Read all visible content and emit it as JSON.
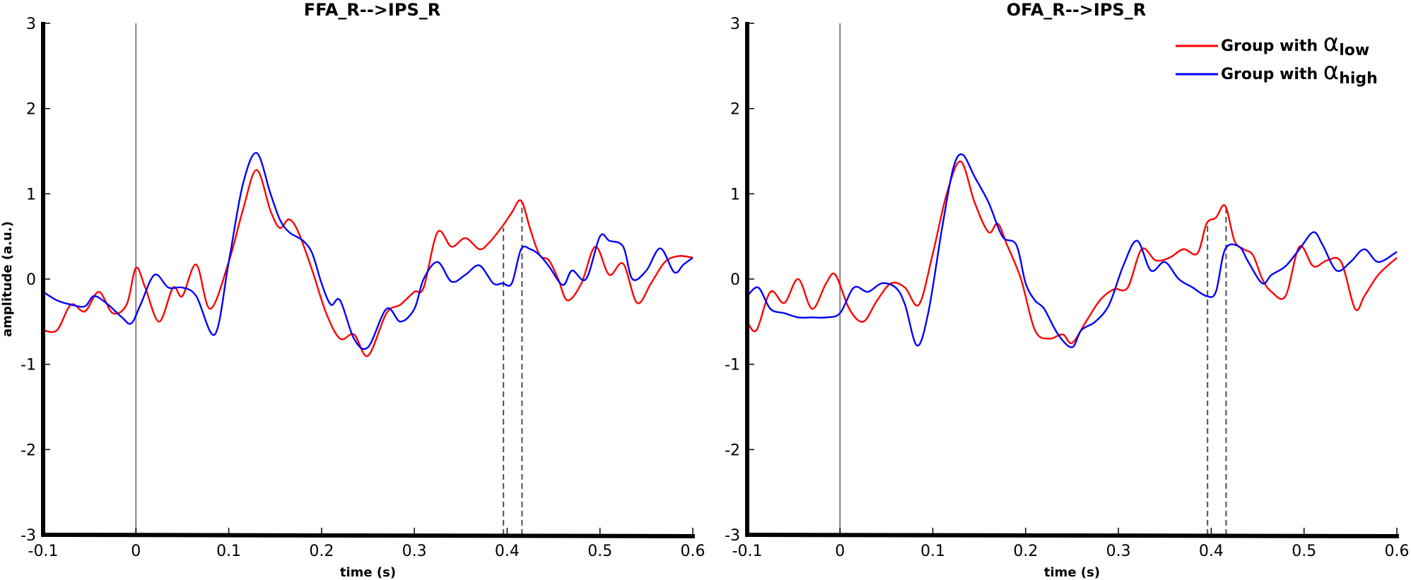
{
  "chart_data": [
    {
      "type": "line",
      "title": "FFA_R-->IPS_R",
      "xlabel": "time (s)",
      "ylabel": "amplitude (a.u.)",
      "xlim": [
        -0.1,
        0.6
      ],
      "ylim": [
        -3,
        3
      ],
      "xticks": [
        -0.1,
        0,
        0.1,
        0.2,
        0.3,
        0.4,
        0.5,
        0.6
      ],
      "xtick_labels": [
        "-0.1",
        "0",
        "0.1",
        "0.2",
        "0.3",
        "0.4",
        "0.5",
        "0.6"
      ],
      "yticks": [
        -3,
        -2,
        -1,
        0,
        1,
        2,
        3
      ],
      "ytick_labels": [
        "-3",
        "-2",
        "-1",
        "0",
        "1",
        "2",
        "3"
      ],
      "grid": false,
      "vlines": [
        {
          "x": 0,
          "style": "solid",
          "color": "#808080"
        },
        {
          "x": 0.396,
          "style": "dashed",
          "color": "#505050",
          "y_to": 0.6
        },
        {
          "x": 0.416,
          "style": "dashed",
          "color": "#505050",
          "y_to": 0.9
        }
      ],
      "series": [
        {
          "color": "#ff0000",
          "x": [
            -0.1,
            -0.085,
            -0.07,
            -0.055,
            -0.04,
            -0.025,
            -0.01,
            0,
            0.01,
            0.025,
            0.04,
            0.05,
            0.065,
            0.08,
            0.1,
            0.115,
            0.13,
            0.145,
            0.155,
            0.165,
            0.175,
            0.19,
            0.205,
            0.22,
            0.235,
            0.25,
            0.27,
            0.285,
            0.3,
            0.31,
            0.325,
            0.34,
            0.355,
            0.37,
            0.38,
            0.395,
            0.405,
            0.415,
            0.425,
            0.435,
            0.445,
            0.455,
            0.465,
            0.48,
            0.495,
            0.51,
            0.525,
            0.54,
            0.555,
            0.57,
            0.585,
            0.6
          ],
          "y": [
            -0.6,
            -0.6,
            -0.3,
            -0.38,
            -0.15,
            -0.4,
            -0.3,
            0.13,
            -0.1,
            -0.5,
            -0.1,
            -0.2,
            0.17,
            -0.35,
            0.2,
            0.8,
            1.28,
            0.8,
            0.6,
            0.7,
            0.55,
            0.1,
            -0.4,
            -0.7,
            -0.65,
            -0.9,
            -0.4,
            -0.3,
            -0.15,
            -0.1,
            0.55,
            0.38,
            0.48,
            0.35,
            0.42,
            0.62,
            0.78,
            0.92,
            0.58,
            0.28,
            0.22,
            0.0,
            -0.25,
            -0.05,
            0.38,
            0.05,
            0.18,
            -0.28,
            -0.05,
            0.2,
            0.27,
            0.25
          ]
        },
        {
          "color": "#0000ff",
          "x": [
            -0.1,
            -0.085,
            -0.07,
            -0.055,
            -0.045,
            -0.03,
            -0.015,
            -0.005,
            0.005,
            0.02,
            0.035,
            0.05,
            0.065,
            0.085,
            0.1,
            0.115,
            0.13,
            0.145,
            0.155,
            0.165,
            0.18,
            0.19,
            0.2,
            0.21,
            0.22,
            0.235,
            0.25,
            0.27,
            0.285,
            0.3,
            0.31,
            0.325,
            0.34,
            0.355,
            0.37,
            0.385,
            0.395,
            0.405,
            0.415,
            0.425,
            0.435,
            0.445,
            0.46,
            0.47,
            0.485,
            0.5,
            0.51,
            0.525,
            0.535,
            0.55,
            0.565,
            0.58,
            0.59,
            0.6
          ],
          "y": [
            -0.15,
            -0.25,
            -0.3,
            -0.32,
            -0.2,
            -0.3,
            -0.45,
            -0.52,
            -0.3,
            0.05,
            -0.1,
            -0.1,
            -0.2,
            -0.65,
            0.2,
            1.1,
            1.48,
            1.0,
            0.7,
            0.55,
            0.45,
            0.3,
            -0.05,
            -0.3,
            -0.25,
            -0.7,
            -0.8,
            -0.35,
            -0.5,
            -0.35,
            0.0,
            0.2,
            -0.03,
            0.05,
            0.16,
            -0.05,
            -0.05,
            -0.05,
            0.35,
            0.35,
            0.28,
            0.15,
            -0.07,
            0.1,
            0.0,
            0.5,
            0.45,
            0.38,
            0.0,
            0.1,
            0.36,
            0.08,
            0.17,
            0.25
          ]
        }
      ]
    },
    {
      "type": "line",
      "title": "OFA_R-->IPS_R",
      "xlabel": "time (s)",
      "ylabel": "",
      "xlim": [
        -0.1,
        0.6
      ],
      "ylim": [
        -3,
        3
      ],
      "xticks": [
        -0.1,
        0,
        0.1,
        0.2,
        0.3,
        0.4,
        0.5,
        0.6
      ],
      "xtick_labels": [
        "-0.1",
        "0",
        "0.1",
        "0.2",
        "0.3",
        "0.4",
        "0.5",
        "0.6"
      ],
      "yticks": [
        -3,
        -2,
        -1,
        0,
        1,
        2,
        3
      ],
      "ytick_labels": [
        "-3",
        "-2",
        "-1",
        "0",
        "1",
        "2",
        "3"
      ],
      "grid": false,
      "legend": {
        "placement": "top-right"
      },
      "vlines": [
        {
          "x": 0,
          "style": "solid",
          "color": "#808080"
        },
        {
          "x": 0.396,
          "style": "dashed",
          "color": "#505050",
          "y_to": 0.65
        },
        {
          "x": 0.416,
          "style": "dashed",
          "color": "#505050",
          "y_to": 0.85
        }
      ],
      "series": [
        {
          "name": "Group with α",
          "name_subscript": "low",
          "color": "#ff0000",
          "x": [
            -0.1,
            -0.09,
            -0.075,
            -0.06,
            -0.045,
            -0.03,
            -0.015,
            -0.005,
            0.01,
            0.025,
            0.04,
            0.055,
            0.07,
            0.085,
            0.1,
            0.115,
            0.13,
            0.145,
            0.16,
            0.17,
            0.18,
            0.195,
            0.21,
            0.225,
            0.24,
            0.25,
            0.265,
            0.28,
            0.295,
            0.31,
            0.325,
            0.34,
            0.355,
            0.37,
            0.385,
            0.395,
            0.405,
            0.415,
            0.425,
            0.435,
            0.445,
            0.455,
            0.465,
            0.48,
            0.495,
            0.51,
            0.525,
            0.54,
            0.555,
            0.565,
            0.58,
            0.6
          ],
          "y": [
            -0.5,
            -0.6,
            -0.15,
            -0.28,
            0.0,
            -0.35,
            -0.05,
            0.05,
            -0.35,
            -0.5,
            -0.25,
            -0.05,
            -0.1,
            -0.3,
            0.3,
            1.0,
            1.38,
            0.9,
            0.55,
            0.65,
            0.4,
            0.0,
            -0.6,
            -0.7,
            -0.65,
            -0.75,
            -0.5,
            -0.25,
            -0.12,
            -0.1,
            0.35,
            0.22,
            0.25,
            0.35,
            0.3,
            0.65,
            0.72,
            0.86,
            0.45,
            0.35,
            0.28,
            0.0,
            -0.15,
            -0.2,
            0.38,
            0.15,
            0.22,
            0.2,
            -0.35,
            -0.2,
            0.05,
            0.25
          ]
        },
        {
          "name": "Group with α",
          "name_subscript": "high",
          "color": "#0000ff",
          "x": [
            -0.1,
            -0.088,
            -0.075,
            -0.06,
            -0.045,
            -0.03,
            -0.015,
            0,
            0.015,
            0.03,
            0.045,
            0.06,
            0.07,
            0.083,
            0.095,
            0.11,
            0.122,
            0.132,
            0.145,
            0.16,
            0.175,
            0.19,
            0.2,
            0.21,
            0.22,
            0.235,
            0.25,
            0.26,
            0.275,
            0.29,
            0.305,
            0.32,
            0.335,
            0.35,
            0.365,
            0.38,
            0.395,
            0.405,
            0.415,
            0.43,
            0.44,
            0.455,
            0.465,
            0.48,
            0.495,
            0.51,
            0.52,
            0.535,
            0.55,
            0.565,
            0.58,
            0.6
          ],
          "y": [
            -0.2,
            -0.1,
            -0.35,
            -0.4,
            -0.45,
            -0.45,
            -0.45,
            -0.4,
            -0.1,
            -0.15,
            -0.05,
            -0.1,
            -0.3,
            -0.78,
            -0.4,
            0.6,
            1.3,
            1.46,
            1.2,
            0.9,
            0.5,
            0.4,
            -0.05,
            -0.25,
            -0.35,
            -0.65,
            -0.8,
            -0.6,
            -0.5,
            -0.3,
            0.15,
            0.45,
            0.1,
            0.2,
            0.0,
            -0.1,
            -0.2,
            -0.15,
            0.35,
            0.38,
            0.2,
            -0.05,
            0.05,
            0.15,
            0.35,
            0.55,
            0.4,
            0.1,
            0.2,
            0.35,
            0.2,
            0.32
          ]
        }
      ]
    }
  ]
}
